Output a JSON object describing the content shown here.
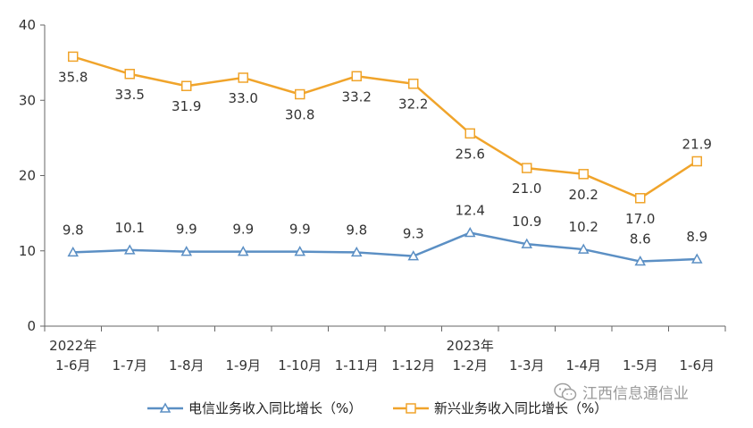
{
  "chart_data": {
    "type": "line",
    "categories": [
      "1-6月",
      "1-7月",
      "1-8月",
      "1-9月",
      "1-10月",
      "1-11月",
      "1-12月",
      "1-2月",
      "1-3月",
      "1-4月",
      "1-5月",
      "1-6月"
    ],
    "year_labels": [
      {
        "index": 0,
        "text": "2022年"
      },
      {
        "index": 7,
        "text": "2023年"
      }
    ],
    "series": [
      {
        "name": "电信业务收入同比增长（%）",
        "color": "#5b8fc4",
        "marker": "triangle",
        "values": [
          9.8,
          10.1,
          9.9,
          9.9,
          9.9,
          9.8,
          9.3,
          12.4,
          10.9,
          10.2,
          8.6,
          8.9
        ],
        "labels": [
          "9.8",
          "10.1",
          "9.9",
          "9.9",
          "9.9",
          "9.8",
          "9.3",
          "12.4",
          "10.9",
          "10.2",
          "8.6",
          "8.9"
        ]
      },
      {
        "name": "新兴业务收入同比增长（%）",
        "color": "#f0a42b",
        "marker": "square",
        "values": [
          35.8,
          33.5,
          31.9,
          33.0,
          30.8,
          33.2,
          32.2,
          25.6,
          21.0,
          20.2,
          17.0,
          21.9
        ],
        "labels": [
          "35.8",
          "33.5",
          "31.9",
          "33.0",
          "30.8",
          "33.2",
          "32.2",
          "25.6",
          "21.0",
          "20.2",
          "17.0",
          "21.9"
        ]
      }
    ],
    "y_ticks": [
      "0",
      "10",
      "20",
      "30",
      "40"
    ],
    "ylim": [
      0,
      40
    ],
    "legend_position": "bottom-center",
    "title": "",
    "xlabel": "",
    "ylabel": ""
  },
  "watermark": {
    "text": "江西信息通信业",
    "icon": "wechat-icon"
  }
}
